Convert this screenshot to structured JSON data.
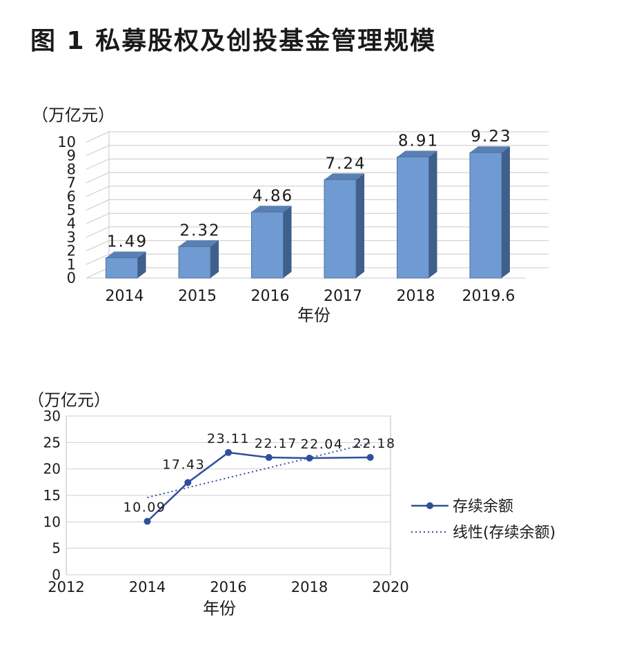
{
  "title": "图 1 私募股权及创投基金管理规模",
  "chart_data": [
    {
      "type": "bar",
      "unit_label": "（万亿元）",
      "xlabel": "年份",
      "categories": [
        "2014",
        "2015",
        "2016",
        "2017",
        "2018",
        "2019.6"
      ],
      "values": [
        1.49,
        2.32,
        4.86,
        7.24,
        8.91,
        9.23
      ],
      "data_labels": [
        "1.49",
        "2.32",
        "4.86",
        "7.24",
        "8.91",
        "9.23"
      ],
      "ylim": [
        0,
        10
      ],
      "yticks": [
        0,
        1,
        2,
        3,
        4,
        5,
        6,
        7,
        8,
        9,
        10
      ],
      "grid": true,
      "colors": {
        "bar_front": "#6f9bd2",
        "bar_side": "#3f5f8c",
        "bar_top": "#5a80b3",
        "grid": "#c8c8c8"
      }
    },
    {
      "type": "line",
      "unit_label": "（万亿元）",
      "xlabel": "年份",
      "xlim": [
        2012,
        2020
      ],
      "xticks": [
        2012,
        2014,
        2016,
        2018,
        2020
      ],
      "ylim": [
        0,
        30
      ],
      "yticks": [
        0,
        5,
        10,
        15,
        20,
        25,
        30
      ],
      "grid": true,
      "legend_position": "right",
      "series": [
        {
          "name": "存续余额",
          "style": "solid-marker",
          "color": "#2f4f9c",
          "x": [
            2014,
            2015,
            2016,
            2017,
            2018,
            2019.5
          ],
          "y": [
            10.09,
            17.43,
            23.11,
            22.17,
            22.04,
            22.18
          ],
          "data_labels": [
            "10.09",
            "17.43",
            "23.11",
            "22.17",
            "22.04",
            "22.18"
          ]
        },
        {
          "name": "线性(存续余额)",
          "style": "dotted",
          "color": "#2f4f9c",
          "x": [
            2014,
            2019.5
          ],
          "y": [
            14.6,
            24.9
          ]
        }
      ]
    }
  ]
}
